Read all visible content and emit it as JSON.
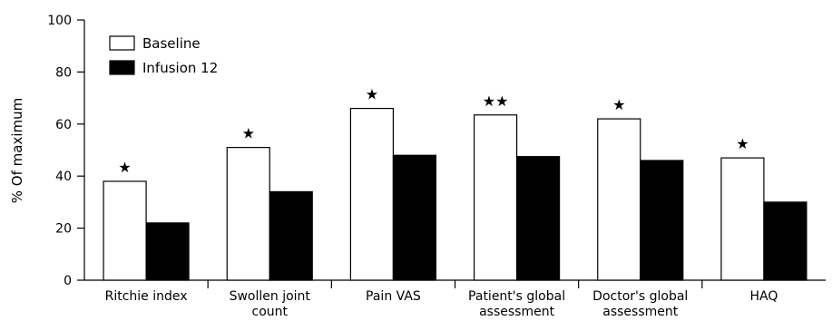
{
  "chart_data": {
    "type": "bar",
    "categories": [
      [
        "Ritchie index"
      ],
      [
        "Swollen joint",
        "count"
      ],
      [
        "Pain VAS"
      ],
      [
        "Patient's global",
        "assessment"
      ],
      [
        "Doctor's global",
        "assessment"
      ],
      [
        "HAQ"
      ]
    ],
    "series": [
      {
        "name": "Baseline",
        "values": [
          38,
          51,
          66,
          63.5,
          62,
          47
        ],
        "fill": "#ffffff"
      },
      {
        "name": "Infusion 12",
        "values": [
          22,
          34,
          48,
          47.5,
          46,
          30
        ],
        "fill": "#000000"
      }
    ],
    "significance": [
      "★",
      "★",
      "★",
      "★★",
      "★",
      "★"
    ],
    "ylabel": "% Of maximum",
    "xlabel": "",
    "ylim": [
      0,
      100
    ],
    "yticks": [
      0,
      20,
      40,
      60,
      80,
      100
    ],
    "grid": false,
    "legend_position": "top-left"
  }
}
